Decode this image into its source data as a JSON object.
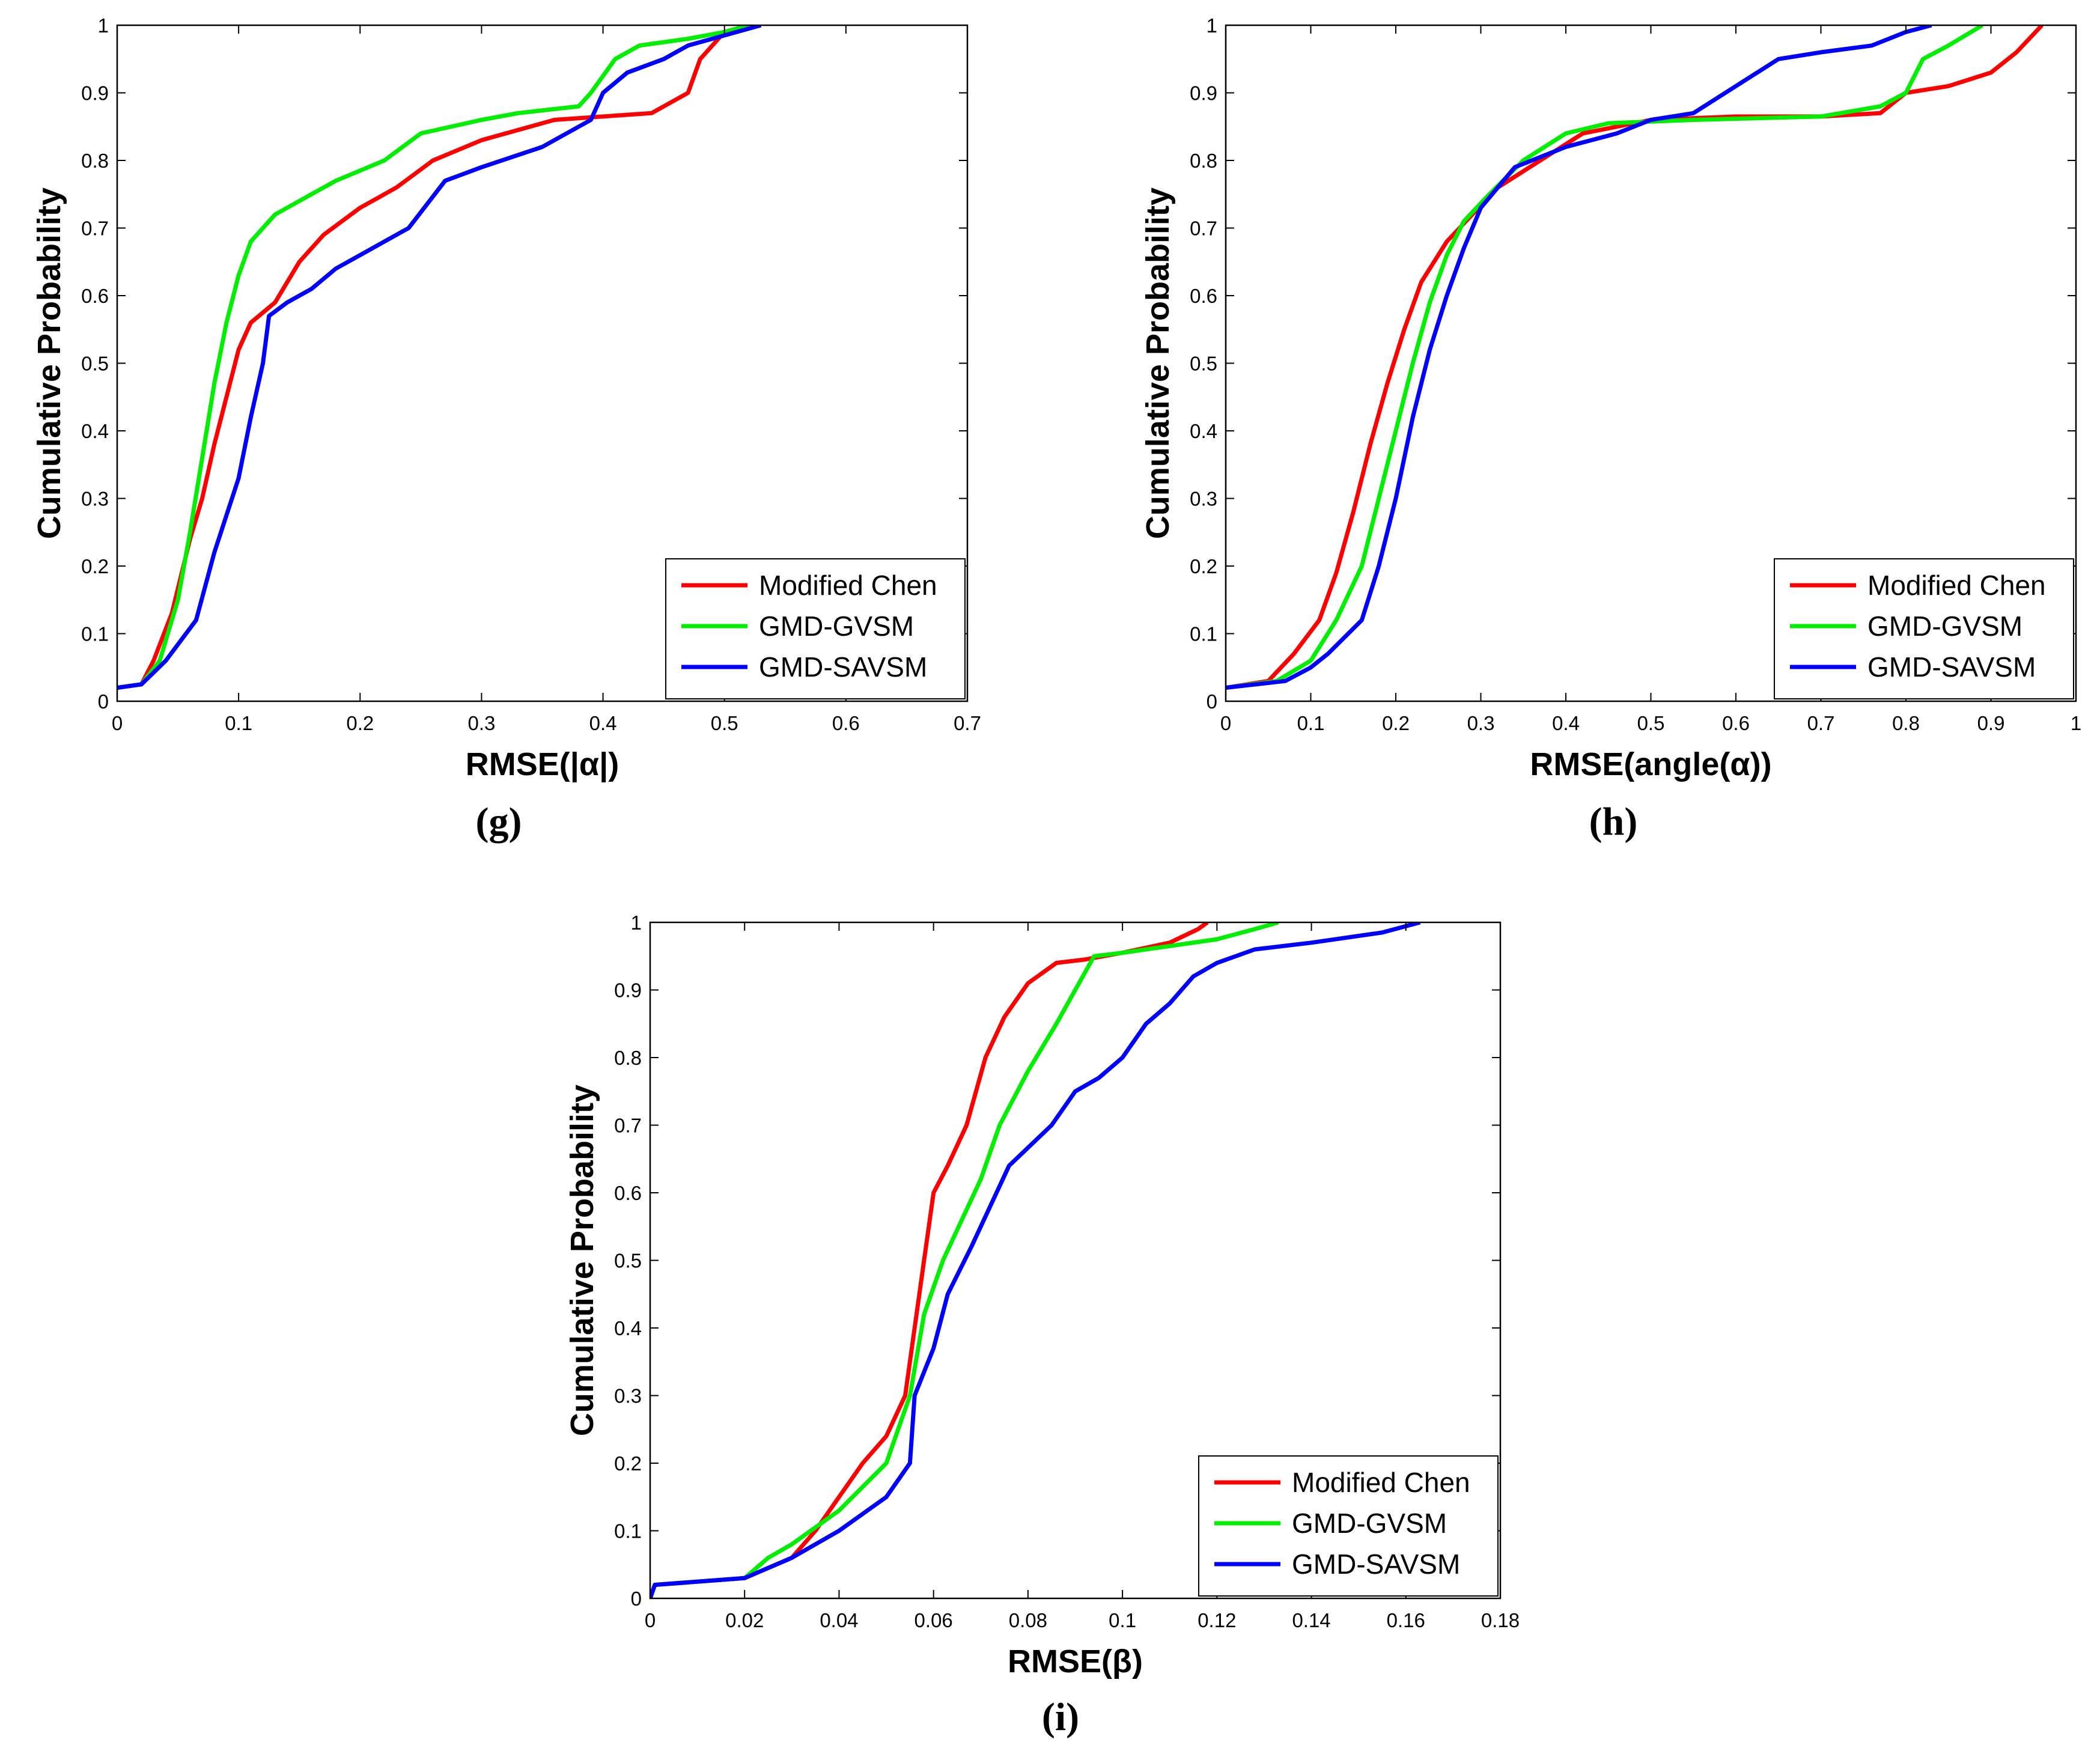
{
  "chart_data": [
    {
      "type": "line",
      "caption": "(g)",
      "xlabel": "RMSE(|α|)",
      "ylabel": "Cumulative Probability",
      "xlim": [
        0,
        0.7
      ],
      "ylim": [
        0,
        1
      ],
      "xticks": [
        "0",
        "0.1",
        "0.2",
        "0.3",
        "0.4",
        "0.5",
        "0.6",
        "0.7"
      ],
      "yticks": [
        "0",
        "0.1",
        "0.2",
        "0.3",
        "0.4",
        "0.5",
        "0.6",
        "0.7",
        "0.8",
        "0.9",
        "1"
      ],
      "legend_position": "bottom-right",
      "series": [
        {
          "name": "Modified Chen",
          "color": "#ff0000",
          "points": [
            [
              0,
              0.02
            ],
            [
              0.02,
              0.025
            ],
            [
              0.03,
              0.06
            ],
            [
              0.045,
              0.13
            ],
            [
              0.06,
              0.24
            ],
            [
              0.07,
              0.3
            ],
            [
              0.08,
              0.38
            ],
            [
              0.09,
              0.45
            ],
            [
              0.1,
              0.52
            ],
            [
              0.11,
              0.56
            ],
            [
              0.13,
              0.59
            ],
            [
              0.15,
              0.65
            ],
            [
              0.17,
              0.69
            ],
            [
              0.2,
              0.73
            ],
            [
              0.23,
              0.76
            ],
            [
              0.26,
              0.8
            ],
            [
              0.3,
              0.83
            ],
            [
              0.33,
              0.845
            ],
            [
              0.36,
              0.86
            ],
            [
              0.4,
              0.865
            ],
            [
              0.44,
              0.87
            ],
            [
              0.47,
              0.9
            ],
            [
              0.48,
              0.95
            ],
            [
              0.5,
              0.99
            ],
            [
              0.52,
              1.0
            ]
          ]
        },
        {
          "name": "GMD-GVSM",
          "color": "#00ee00",
          "points": [
            [
              0,
              0.02
            ],
            [
              0.02,
              0.025
            ],
            [
              0.035,
              0.06
            ],
            [
              0.05,
              0.15
            ],
            [
              0.06,
              0.25
            ],
            [
              0.07,
              0.36
            ],
            [
              0.08,
              0.47
            ],
            [
              0.09,
              0.56
            ],
            [
              0.1,
              0.63
            ],
            [
              0.11,
              0.68
            ],
            [
              0.13,
              0.72
            ],
            [
              0.15,
              0.74
            ],
            [
              0.18,
              0.77
            ],
            [
              0.22,
              0.8
            ],
            [
              0.25,
              0.84
            ],
            [
              0.3,
              0.86
            ],
            [
              0.33,
              0.87
            ],
            [
              0.38,
              0.88
            ],
            [
              0.39,
              0.9
            ],
            [
              0.41,
              0.95
            ],
            [
              0.43,
              0.97
            ],
            [
              0.47,
              0.98
            ],
            [
              0.5,
              0.99
            ],
            [
              0.52,
              1.0
            ]
          ]
        },
        {
          "name": "GMD-SAVSM",
          "color": "#0000ff",
          "points": [
            [
              0,
              0.02
            ],
            [
              0.02,
              0.025
            ],
            [
              0.04,
              0.06
            ],
            [
              0.065,
              0.12
            ],
            [
              0.08,
              0.22
            ],
            [
              0.1,
              0.33
            ],
            [
              0.11,
              0.42
            ],
            [
              0.12,
              0.5
            ],
            [
              0.125,
              0.57
            ],
            [
              0.14,
              0.59
            ],
            [
              0.16,
              0.61
            ],
            [
              0.18,
              0.64
            ],
            [
              0.21,
              0.67
            ],
            [
              0.24,
              0.7
            ],
            [
              0.27,
              0.77
            ],
            [
              0.3,
              0.79
            ],
            [
              0.35,
              0.82
            ],
            [
              0.39,
              0.86
            ],
            [
              0.4,
              0.9
            ],
            [
              0.42,
              0.93
            ],
            [
              0.45,
              0.95
            ],
            [
              0.47,
              0.97
            ],
            [
              0.5,
              0.985
            ],
            [
              0.53,
              1.0
            ]
          ]
        }
      ]
    },
    {
      "type": "line",
      "caption": "(h)",
      "xlabel": "RMSE(angle(α))",
      "ylabel": "Cumulative Probability",
      "xlim": [
        0,
        1
      ],
      "ylim": [
        0,
        1
      ],
      "xticks": [
        "0",
        "0.1",
        "0.2",
        "0.3",
        "0.4",
        "0.5",
        "0.6",
        "0.7",
        "0.8",
        "0.9",
        "1"
      ],
      "yticks": [
        "0",
        "0.1",
        "0.2",
        "0.3",
        "0.4",
        "0.5",
        "0.6",
        "0.7",
        "0.8",
        "0.9",
        "1"
      ],
      "legend_position": "bottom-right",
      "series": [
        {
          "name": "Modified Chen",
          "color": "#ff0000",
          "points": [
            [
              0,
              0.02
            ],
            [
              0.05,
              0.03
            ],
            [
              0.08,
              0.07
            ],
            [
              0.11,
              0.12
            ],
            [
              0.13,
              0.19
            ],
            [
              0.15,
              0.28
            ],
            [
              0.17,
              0.38
            ],
            [
              0.19,
              0.47
            ],
            [
              0.21,
              0.55
            ],
            [
              0.23,
              0.62
            ],
            [
              0.26,
              0.68
            ],
            [
              0.29,
              0.72
            ],
            [
              0.32,
              0.76
            ],
            [
              0.37,
              0.8
            ],
            [
              0.42,
              0.84
            ],
            [
              0.5,
              0.86
            ],
            [
              0.6,
              0.865
            ],
            [
              0.7,
              0.865
            ],
            [
              0.77,
              0.87
            ],
            [
              0.8,
              0.9
            ],
            [
              0.85,
              0.91
            ],
            [
              0.9,
              0.93
            ],
            [
              0.93,
              0.96
            ],
            [
              0.96,
              1.0
            ]
          ]
        },
        {
          "name": "GMD-GVSM",
          "color": "#00ee00",
          "points": [
            [
              0,
              0.02
            ],
            [
              0.06,
              0.03
            ],
            [
              0.1,
              0.06
            ],
            [
              0.13,
              0.12
            ],
            [
              0.16,
              0.2
            ],
            [
              0.18,
              0.3
            ],
            [
              0.2,
              0.4
            ],
            [
              0.22,
              0.5
            ],
            [
              0.24,
              0.59
            ],
            [
              0.26,
              0.66
            ],
            [
              0.28,
              0.71
            ],
            [
              0.31,
              0.75
            ],
            [
              0.35,
              0.8
            ],
            [
              0.4,
              0.84
            ],
            [
              0.45,
              0.855
            ],
            [
              0.55,
              0.86
            ],
            [
              0.7,
              0.865
            ],
            [
              0.77,
              0.88
            ],
            [
              0.8,
              0.9
            ],
            [
              0.82,
              0.95
            ],
            [
              0.85,
              0.97
            ],
            [
              0.89,
              1.0
            ]
          ]
        },
        {
          "name": "GMD-SAVSM",
          "color": "#0000ff",
          "points": [
            [
              0,
              0.02
            ],
            [
              0.07,
              0.03
            ],
            [
              0.1,
              0.05
            ],
            [
              0.12,
              0.07
            ],
            [
              0.16,
              0.12
            ],
            [
              0.18,
              0.2
            ],
            [
              0.2,
              0.3
            ],
            [
              0.22,
              0.42
            ],
            [
              0.24,
              0.52
            ],
            [
              0.26,
              0.6
            ],
            [
              0.28,
              0.67
            ],
            [
              0.3,
              0.73
            ],
            [
              0.34,
              0.79
            ],
            [
              0.4,
              0.82
            ],
            [
              0.46,
              0.84
            ],
            [
              0.5,
              0.86
            ],
            [
              0.55,
              0.87
            ],
            [
              0.6,
              0.91
            ],
            [
              0.65,
              0.95
            ],
            [
              0.7,
              0.96
            ],
            [
              0.76,
              0.97
            ],
            [
              0.8,
              0.99
            ],
            [
              0.83,
              1.0
            ]
          ]
        }
      ]
    },
    {
      "type": "line",
      "caption": "(i)",
      "xlabel": "RMSE(β)",
      "ylabel": "Cumulative Probability",
      "xlim": [
        0,
        0.18
      ],
      "ylim": [
        0,
        1
      ],
      "xticks": [
        "0",
        "0.02",
        "0.04",
        "0.06",
        "0.08",
        "0.1",
        "0.12",
        "0.14",
        "0.16",
        "0.18"
      ],
      "yticks": [
        "0",
        "0.1",
        "0.2",
        "0.3",
        "0.4",
        "0.5",
        "0.6",
        "0.7",
        "0.8",
        "0.9",
        "1"
      ],
      "legend_position": "bottom-right",
      "series": [
        {
          "name": "Modified Chen",
          "color": "#ff0000",
          "points": [
            [
              0,
              0.0
            ],
            [
              0.001,
              0.02
            ],
            [
              0.02,
              0.03
            ],
            [
              0.03,
              0.06
            ],
            [
              0.035,
              0.1
            ],
            [
              0.04,
              0.15
            ],
            [
              0.045,
              0.2
            ],
            [
              0.05,
              0.24
            ],
            [
              0.054,
              0.3
            ],
            [
              0.056,
              0.4
            ],
            [
              0.058,
              0.5
            ],
            [
              0.06,
              0.6
            ],
            [
              0.063,
              0.64
            ],
            [
              0.067,
              0.7
            ],
            [
              0.071,
              0.8
            ],
            [
              0.075,
              0.86
            ],
            [
              0.08,
              0.91
            ],
            [
              0.086,
              0.94
            ],
            [
              0.092,
              0.945
            ],
            [
              0.1,
              0.955
            ],
            [
              0.11,
              0.97
            ],
            [
              0.116,
              0.99
            ],
            [
              0.118,
              1.0
            ]
          ]
        },
        {
          "name": "GMD-GVSM",
          "color": "#00ee00",
          "points": [
            [
              0,
              0.0
            ],
            [
              0.001,
              0.02
            ],
            [
              0.02,
              0.03
            ],
            [
              0.025,
              0.06
            ],
            [
              0.03,
              0.08
            ],
            [
              0.04,
              0.13
            ],
            [
              0.05,
              0.2
            ],
            [
              0.055,
              0.3
            ],
            [
              0.058,
              0.42
            ],
            [
              0.062,
              0.5
            ],
            [
              0.066,
              0.56
            ],
            [
              0.07,
              0.62
            ],
            [
              0.074,
              0.7
            ],
            [
              0.08,
              0.78
            ],
            [
              0.086,
              0.85
            ],
            [
              0.09,
              0.9
            ],
            [
              0.094,
              0.95
            ],
            [
              0.1,
              0.955
            ],
            [
              0.11,
              0.965
            ],
            [
              0.12,
              0.975
            ],
            [
              0.128,
              0.99
            ],
            [
              0.133,
              1.0
            ]
          ]
        },
        {
          "name": "GMD-SAVSM",
          "color": "#0000ff",
          "points": [
            [
              0,
              0.0
            ],
            [
              0.001,
              0.02
            ],
            [
              0.02,
              0.03
            ],
            [
              0.03,
              0.06
            ],
            [
              0.04,
              0.1
            ],
            [
              0.05,
              0.15
            ],
            [
              0.055,
              0.2
            ],
            [
              0.056,
              0.3
            ],
            [
              0.06,
              0.37
            ],
            [
              0.063,
              0.45
            ],
            [
              0.068,
              0.52
            ],
            [
              0.072,
              0.58
            ],
            [
              0.076,
              0.64
            ],
            [
              0.085,
              0.7
            ],
            [
              0.09,
              0.75
            ],
            [
              0.095,
              0.77
            ],
            [
              0.1,
              0.8
            ],
            [
              0.105,
              0.85
            ],
            [
              0.11,
              0.88
            ],
            [
              0.115,
              0.92
            ],
            [
              0.12,
              0.94
            ],
            [
              0.128,
              0.96
            ],
            [
              0.14,
              0.97
            ],
            [
              0.155,
              0.985
            ],
            [
              0.163,
              1.0
            ]
          ]
        }
      ]
    }
  ]
}
